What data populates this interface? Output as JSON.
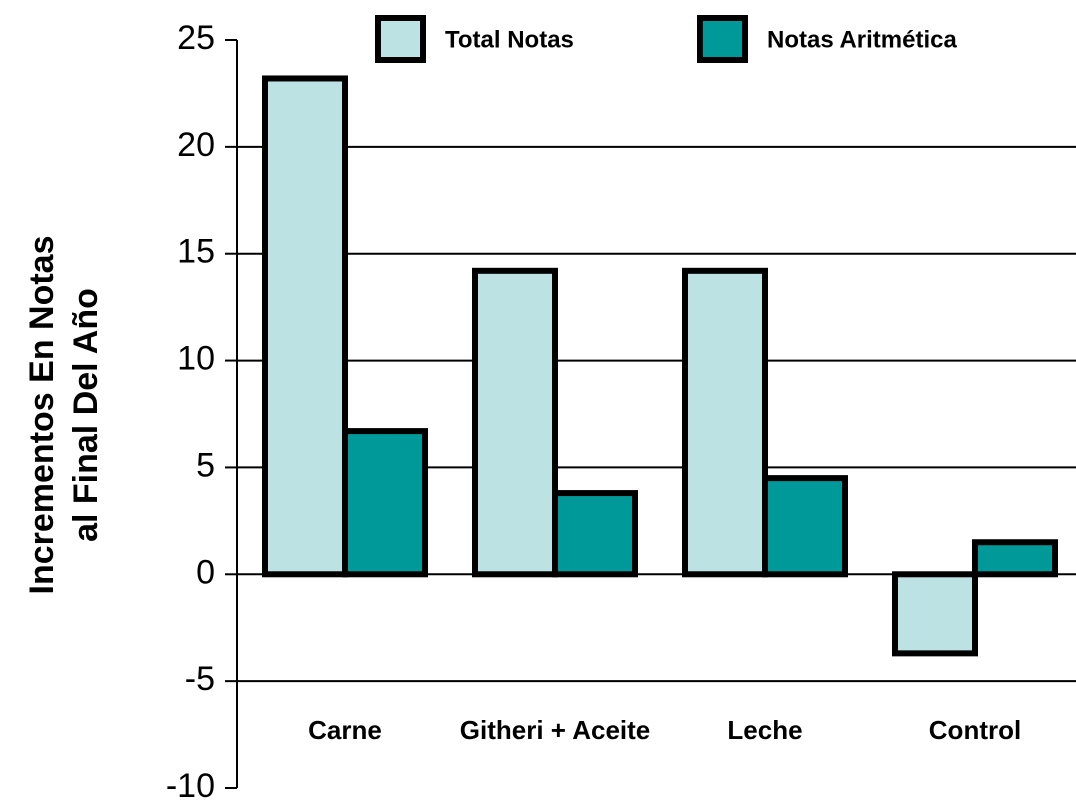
{
  "chart_data": {
    "type": "bar",
    "ylabel": [
      "Incrementos En Notas",
      "al Final Del Año"
    ],
    "categories": [
      "Carne",
      "Githeri + Aceite",
      "Leche",
      "Control"
    ],
    "series": [
      {
        "name": "Total Notas",
        "color": "#bde2e3",
        "values": [
          23.2,
          14.2,
          14.2,
          -3.7
        ]
      },
      {
        "name": "Notas Aritmética",
        "color": "#009999",
        "values": [
          6.7,
          3.8,
          4.5,
          1.5
        ]
      }
    ],
    "ylim": [
      -10,
      25
    ],
    "yticks": [
      -10,
      -5,
      0,
      5,
      10,
      15,
      20,
      25
    ],
    "grid": true,
    "legend": "top"
  }
}
